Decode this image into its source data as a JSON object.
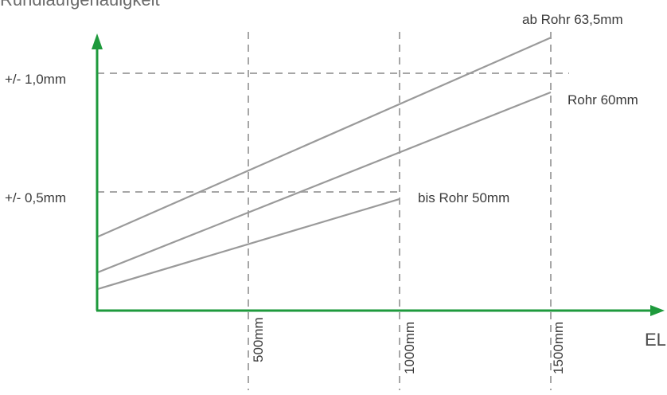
{
  "chart_data": {
    "type": "line",
    "title": "Rundlaufgenauigkeit",
    "xlabel": "EL",
    "ylabel": "",
    "x_ticks": [
      "500mm",
      "1000mm",
      "1500mm"
    ],
    "y_ticks": [
      "+/- 0,5mm",
      "+/- 1,0mm"
    ],
    "xlim": [
      0,
      1850
    ],
    "ylim": [
      0,
      1.4
    ],
    "grid": "dashed at tick values",
    "series": [
      {
        "name": "ab Rohr 63,5mm",
        "x": [
          0,
          1500
        ],
        "y": [
          0.31,
          1.15
        ]
      },
      {
        "name": "Rohr 60mm",
        "x": [
          0,
          1500
        ],
        "y": [
          0.16,
          0.92
        ]
      },
      {
        "name": "bis Rohr 50mm",
        "x": [
          0,
          1000
        ],
        "y": [
          0.09,
          0.47
        ]
      }
    ],
    "colors": {
      "axis": "#1e9a3c",
      "series": "#9a9a9a",
      "grid": "#a6a6a6",
      "text": "#3a3a3a"
    }
  }
}
